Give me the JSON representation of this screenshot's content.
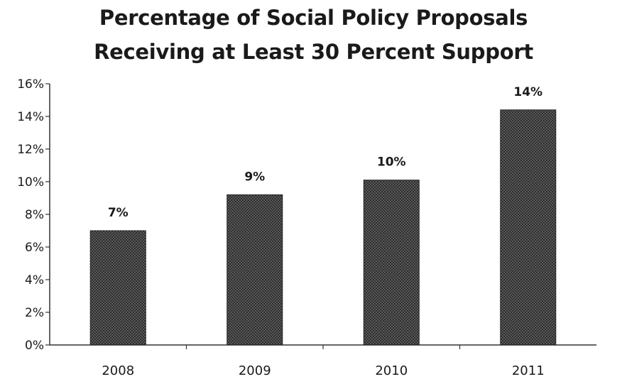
{
  "chart_data": {
    "type": "bar",
    "title_lines": [
      "Percentage of Social Policy Proposals",
      "Receiving at Least 30 Percent Support"
    ],
    "categories": [
      "2008",
      "2009",
      "2010",
      "2011"
    ],
    "values": [
      7,
      9.2,
      10.1,
      14.4
    ],
    "data_labels": [
      "7%",
      "9%",
      "10%",
      "14%"
    ],
    "ylim": [
      0,
      16
    ],
    "yticks": [
      0,
      2,
      4,
      6,
      8,
      10,
      12,
      14,
      16
    ],
    "ytick_labels": [
      "0%",
      "2%",
      "4%",
      "6%",
      "8%",
      "10%",
      "12%",
      "14%",
      "16%"
    ],
    "xlabel": "",
    "ylabel": "",
    "grid": false,
    "bar_color": "#4a4a4a"
  }
}
